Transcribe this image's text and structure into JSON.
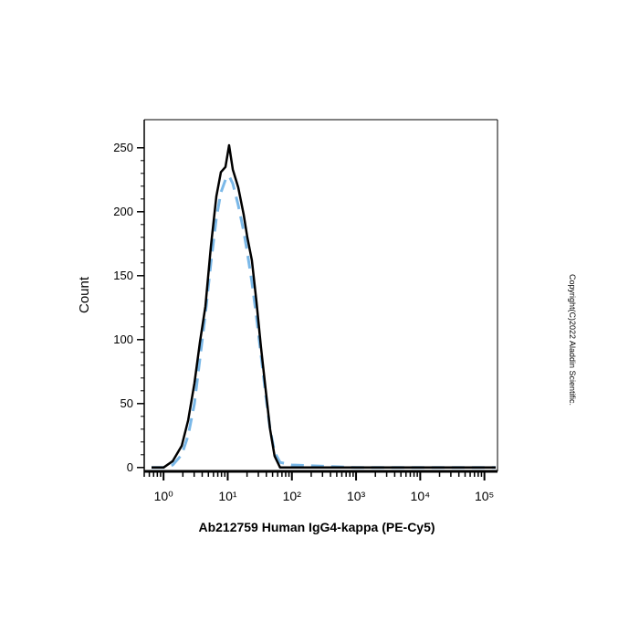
{
  "chart_data": {
    "type": "line",
    "x_label": "Ab212759 Human IgG4-kappa (PE-Cy5)",
    "y_label": "Count",
    "note": "Copyright(C)2022 Aladdin Scientific.",
    "x": [
      0.65,
      1,
      1.39,
      1.92,
      2.42,
      3.03,
      3.69,
      4.49,
      5.47,
      6.65,
      7.83,
      9.22,
      10.5,
      12.0,
      14.6,
      17.7,
      20.2,
      23.8,
      28.0,
      33.0,
      38.8,
      45.7,
      53.7,
      65.5,
      100,
      1000,
      10000,
      100000,
      150000
    ],
    "series": [
      {
        "color": "#000000",
        "line_style": "solid",
        "values": [
          0,
          0,
          5,
          17,
          37,
          66,
          98,
          126,
          173,
          212,
          231,
          235,
          252,
          233,
          219,
          198,
          180,
          162,
          130,
          94,
          62,
          30,
          9,
          0,
          0,
          0,
          0,
          0,
          0
        ]
      },
      {
        "color": "#7ab8e8",
        "line_style": "dashed",
        "values": [
          0,
          0,
          2,
          10,
          25,
          50,
          85,
          120,
          160,
          195,
          215,
          225,
          228,
          222,
          205,
          185,
          168,
          145,
          118,
          88,
          58,
          30,
          12,
          4,
          2,
          0,
          0,
          0,
          0
        ]
      }
    ],
    "x_log": true,
    "xlim": [
      0.5,
      160000
    ],
    "xticks": [
      {
        "value": 1,
        "label": "10⁰"
      },
      {
        "value": 10,
        "label": "10¹"
      },
      {
        "value": 100,
        "label": "10²"
      },
      {
        "value": 1000,
        "label": "10³"
      },
      {
        "value": 10000,
        "label": "10⁴"
      },
      {
        "value": 100000,
        "label": "10⁵"
      }
    ],
    "ylim": [
      -3,
      272
    ],
    "yticks": [
      0,
      50,
      100,
      150,
      200,
      250
    ],
    "grid": false
  }
}
